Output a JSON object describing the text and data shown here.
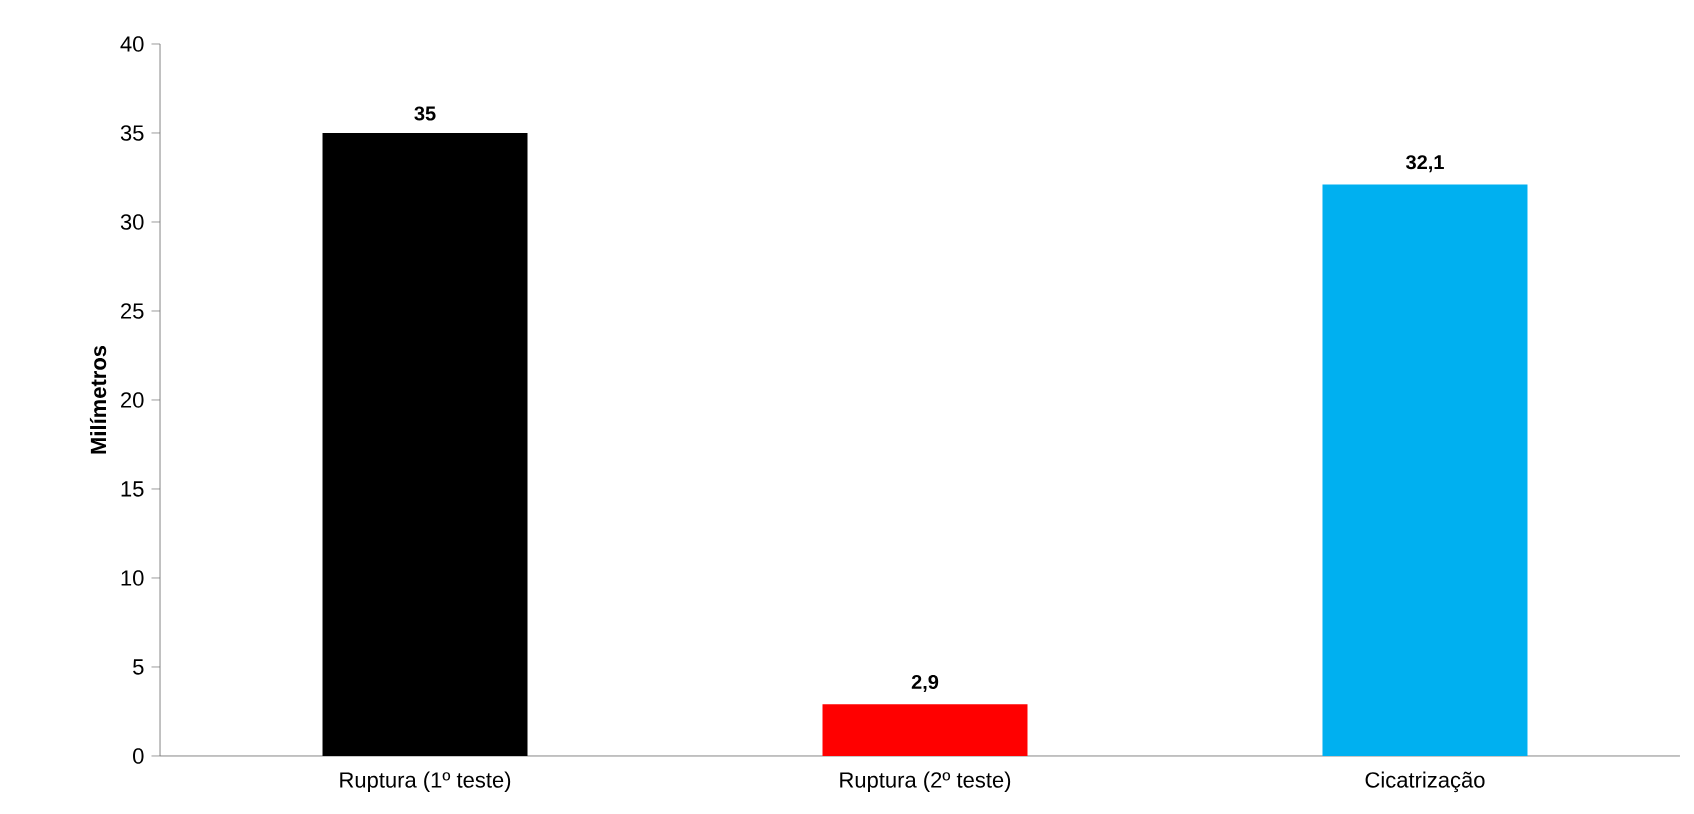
{
  "chart_data": {
    "type": "bar",
    "ylabel": "Milímetros",
    "categories": [
      "Ruptura (1º teste)",
      "Ruptura (2º teste)",
      "Cicatrização"
    ],
    "values": [
      35,
      2.9,
      32.1
    ],
    "colors": [
      "#000000",
      "#ff0000",
      "#00b0f0"
    ],
    "value_labels": [
      "35",
      "2,9",
      "32,1"
    ],
    "ylim": [
      0,
      40
    ],
    "yticks": [
      0,
      5,
      10,
      15,
      20,
      25,
      30,
      35,
      40
    ]
  }
}
